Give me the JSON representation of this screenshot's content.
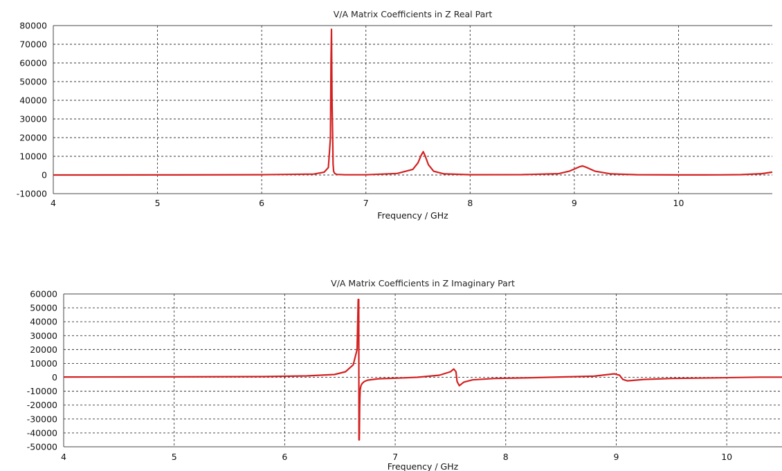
{
  "chart_data": [
    {
      "type": "line",
      "title": "V/A Matrix Coefficients in Z Real Part",
      "xlabel": "Frequency / GHz",
      "ylabel": "",
      "xlim": [
        4,
        10.9
      ],
      "ylim": [
        -10000,
        80000
      ],
      "xticks": [
        "4",
        "5",
        "6",
        "7",
        "8",
        "9",
        "10"
      ],
      "yticks": [
        "80000",
        "70000",
        "60000",
        "50000",
        "40000",
        "30000",
        "20000",
        "10000",
        "0",
        "-10000"
      ],
      "grid": true,
      "color": "#d42020",
      "series": [
        {
          "x": [
            4.0,
            5.0,
            6.0,
            6.5,
            6.6,
            6.64,
            6.66,
            6.665,
            6.67,
            6.675,
            6.68,
            6.685,
            6.69,
            6.7,
            6.72,
            6.8,
            7.0,
            7.3,
            7.45,
            7.5,
            7.53,
            7.55,
            7.57,
            7.6,
            7.65,
            7.75,
            8.0,
            8.5,
            8.85,
            8.95,
            9.0,
            9.05,
            9.08,
            9.12,
            9.2,
            9.35,
            9.6,
            10.0,
            10.4,
            10.6,
            10.8,
            10.9
          ],
          "y": [
            0,
            50,
            150,
            500,
            1500,
            4000,
            20000,
            60000,
            78000,
            40000,
            23000,
            6000,
            2000,
            800,
            300,
            100,
            120,
            800,
            3000,
            6500,
            10500,
            12500,
            10000,
            5500,
            2000,
            600,
            150,
            200,
            700,
            2000,
            3200,
            4400,
            4800,
            4000,
            2000,
            600,
            150,
            50,
            80,
            200,
            700,
            1500
          ]
        }
      ]
    },
    {
      "type": "line",
      "title": "V/A Matrix Coefficients in Z Imaginary Part",
      "xlabel": "Frequency / GHz",
      "ylabel": "",
      "xlim": [
        4,
        10.5
      ],
      "ylim": [
        -50000,
        60000
      ],
      "xticks": [
        "4",
        "5",
        "6",
        "7",
        "8",
        "9",
        "10"
      ],
      "yticks": [
        "60000",
        "50000",
        "40000",
        "30000",
        "20000",
        "10000",
        "0",
        "-10000",
        "-20000",
        "-30000",
        "-40000",
        "-50000"
      ],
      "grid": true,
      "color": "#d42020",
      "series": [
        {
          "x": [
            4.0,
            5.0,
            5.8,
            6.2,
            6.45,
            6.55,
            6.62,
            6.655,
            6.665,
            6.67,
            6.672,
            6.675,
            6.678,
            6.68,
            6.683,
            6.69,
            6.7,
            6.72,
            6.75,
            6.85,
            7.0,
            7.2,
            7.4,
            7.5,
            7.53,
            7.55,
            7.56,
            7.58,
            7.62,
            7.7,
            7.9,
            8.3,
            8.8,
            8.98,
            9.03,
            9.06,
            9.1,
            9.15,
            9.25,
            9.5,
            9.9,
            10.3,
            10.5
          ],
          "y": [
            200,
            300,
            500,
            1000,
            2000,
            4000,
            9000,
            20000,
            56000,
            56000,
            -45000,
            -45000,
            -22000,
            -15000,
            -9000,
            -6000,
            -4500,
            -3000,
            -2000,
            -1000,
            -600,
            0,
            1500,
            4000,
            6000,
            4000,
            -3000,
            -6000,
            -3500,
            -1800,
            -800,
            -200,
            800,
            2500,
            1500,
            -1500,
            -2500,
            -2200,
            -1500,
            -800,
            -400,
            100,
            100
          ]
        }
      ]
    }
  ]
}
